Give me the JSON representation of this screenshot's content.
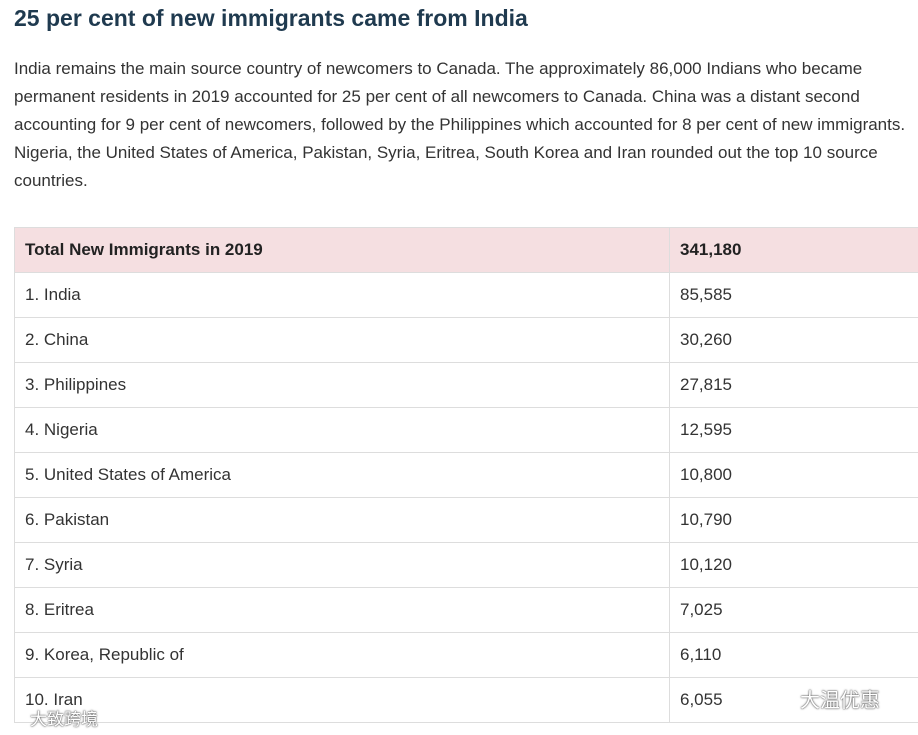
{
  "header": {
    "title": "25 per cent of new immigrants came from India",
    "paragraph": "India remains the main source country of newcomers to Canada. The approximately 86,000 Indians who became permanent residents in 2019 accounted for 25 per cent of all newcomers to Canada. China was a distant second accounting for 9 per cent of newcomers, followed by the Philippines which accounted for 8 per cent of new immigrants. Nigeria, the United States of America, Pakistan, Syria, Eritrea, South Korea and Iran rounded out the top 10 source countries."
  },
  "table": {
    "header": [
      "Total New Immigrants in 2019",
      "341,180"
    ],
    "rows": [
      [
        "1. India",
        "85,585"
      ],
      [
        "2. China",
        "30,260"
      ],
      [
        "3. Philippines",
        "27,815"
      ],
      [
        "4. Nigeria",
        "12,595"
      ],
      [
        "5. United States of America",
        "10,800"
      ],
      [
        "6. Pakistan",
        "10,790"
      ],
      [
        "7. Syria",
        "10,120"
      ],
      [
        "8. Eritrea",
        "7,025"
      ],
      [
        "9. Korea, Republic of",
        "6,110"
      ],
      [
        "10. Iran",
        "6,055"
      ]
    ]
  },
  "watermarks": [
    "大温优惠",
    "大致跨境"
  ]
}
